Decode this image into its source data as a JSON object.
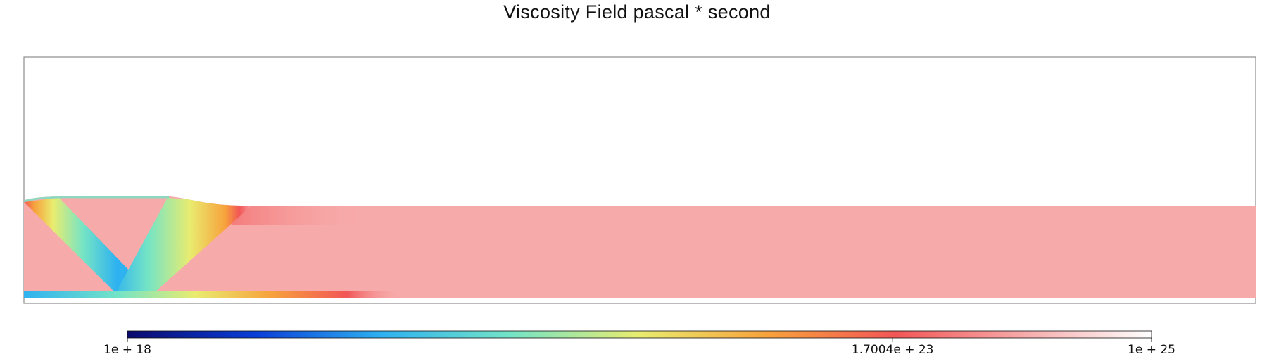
{
  "chart_data": {
    "type": "heatmap",
    "title": "Viscosity Field pascal * second",
    "colorbar": {
      "scale": "log",
      "min": 1e+18,
      "max": 1e+25,
      "colormap": "rainbow-to-white",
      "ticks": [
        {
          "value": 1e+18,
          "label": "1e + 18"
        },
        {
          "value": 1.7004e+23,
          "label": "1.7004e + 23"
        },
        {
          "value": 1e+25,
          "label": "1e + 25"
        }
      ]
    },
    "field_description": {
      "background_value": 1.7004e+23,
      "above_surface": "no data"
    },
    "colors": {
      "frame": "#8c8c8c",
      "background_field": "#f7aaaa",
      "colorbar_stops": [
        "#0b0a6d",
        "#0a3ed8",
        "#2fb2f0",
        "#74e4c6",
        "#e9ec6f",
        "#f7a23c",
        "#f25656",
        "#f7aaaa",
        "#ffffff"
      ]
    }
  }
}
